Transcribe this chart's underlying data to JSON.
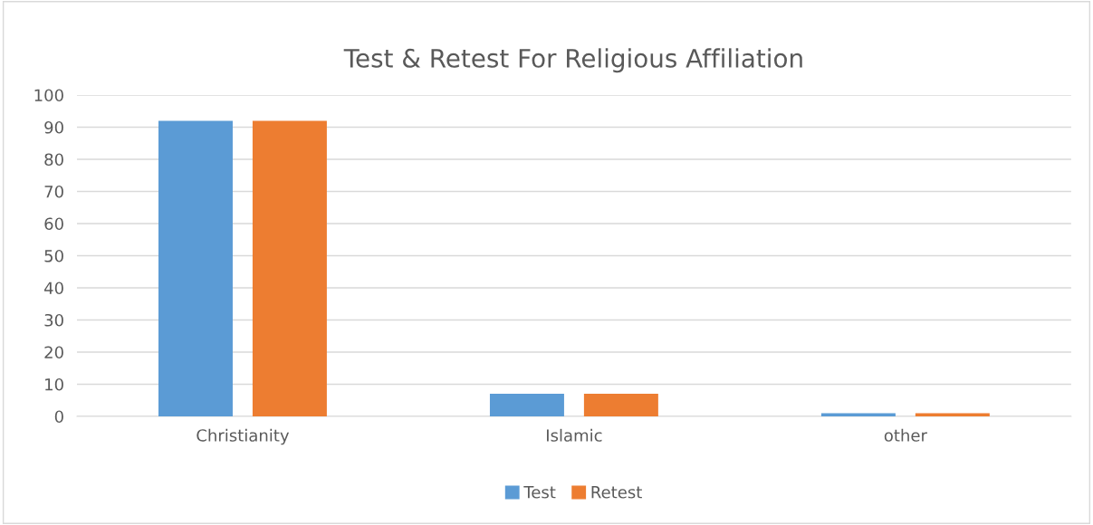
{
  "chart_data": {
    "type": "bar",
    "title": "Test & Retest For Religious Affiliation",
    "categories": [
      "Christianity",
      "Islamic",
      "other"
    ],
    "series": [
      {
        "name": "Test",
        "color": "#5b9bd5",
        "values": [
          92,
          7,
          1
        ]
      },
      {
        "name": "Retest",
        "color": "#ed7d31",
        "values": [
          92,
          7,
          1
        ]
      }
    ],
    "ylim": [
      0,
      100
    ],
    "yticks": [
      0,
      10,
      20,
      30,
      40,
      50,
      60,
      70,
      80,
      90,
      100
    ],
    "grid": "y",
    "legend": "bottom"
  }
}
